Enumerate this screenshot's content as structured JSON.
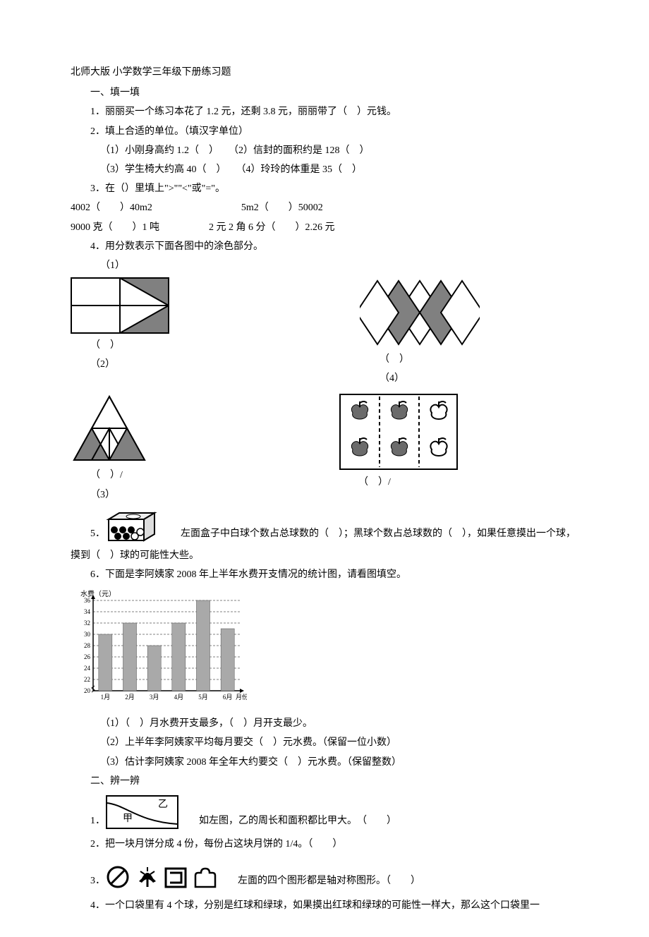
{
  "title": "北师大版 小学数学三年级下册练习题",
  "section1": {
    "heading": "一、填一填",
    "q1": "1．丽丽买一个练习本花了 1.2 元，还剩 3.8 元，丽丽带了（　）元钱。",
    "q2": "2．填上合适的单位。（填汉字单位）",
    "q2_1": "（1）小刚身高约 1.2（　）　　（2）信封的面积约是 128（　）",
    "q2_2": "（3）学生椅大约高 40（　）　　（4）玲玲的体重是 35（　）",
    "q3": "3．在（）里填上\">\"\"<\"或\"=\"。",
    "q3_line1": "4002（　　）40m2　　　　　　　　　5m2（　　）50002",
    "q3_line2": "9000 克（　　）1 吨　　　　　2 元 2 角 6 分（　　）2.26 元",
    "q4": "4．用分数表示下面各图中的涂色部分。",
    "q4_1": "（1）",
    "q4_2": "（2）",
    "q4_3": "（3）",
    "q4_4": "（4）",
    "blank_paren": "（　）",
    "blank_paren_slash": "（　）/",
    "q5_pre": "5．",
    "q5_text1": "左面盒子中白球个数占总球数的（　）；黑球个数占总球数的（　），如果任意摸出一个球，",
    "q5_text2": "摸到（　）球的可能性大些。",
    "q6": "6．下面是李阿姨家 2008 年上半年水费开支情况的统计图，请看图填空。",
    "q6_1": "（1）（　）月水费开支最多，（　）月开支最少。",
    "q6_2": "（2）上半年李阿姨家平均每月要交（　）元水费。（保留一位小数）",
    "q6_3": "（3）估计李阿姨家 2008 年全年大约要交（　）元水费。（保留整数）"
  },
  "section2": {
    "heading": "二、辨一辨",
    "q1_num": "1．",
    "q1_text": "如左图，乙的周长和面积都比甲大。　（　　）",
    "q1_jia": "甲",
    "q1_yi": "乙",
    "q2": "2．把一块月饼分成 4 份，每份占这块月饼的 1/4。（　　）",
    "q3_num": "3．",
    "q3_text": "左面的四个图形都是轴对称图形。（　　）",
    "q4": "4．一个口袋里有 4 个球，分别是红球和绿球，如果摸出红球和绿球的可能性一样大，那么这个口袋里一"
  },
  "chart": {
    "ylabel": "水费（元）",
    "xlabel": "月份",
    "months": [
      "1月",
      "2月",
      "3月",
      "4月",
      "5月",
      "6月"
    ],
    "values": [
      30,
      32,
      28,
      32,
      36,
      31
    ],
    "ymin": 20,
    "ymax": 36,
    "ystep": 2,
    "bar_color": "#a9a9a9",
    "grid_color": "#808080",
    "axis_color": "#000000"
  },
  "colors": {
    "shape_fill": "#808080",
    "shape_stroke": "#000000",
    "apple_fill": "#6b6b6b"
  }
}
